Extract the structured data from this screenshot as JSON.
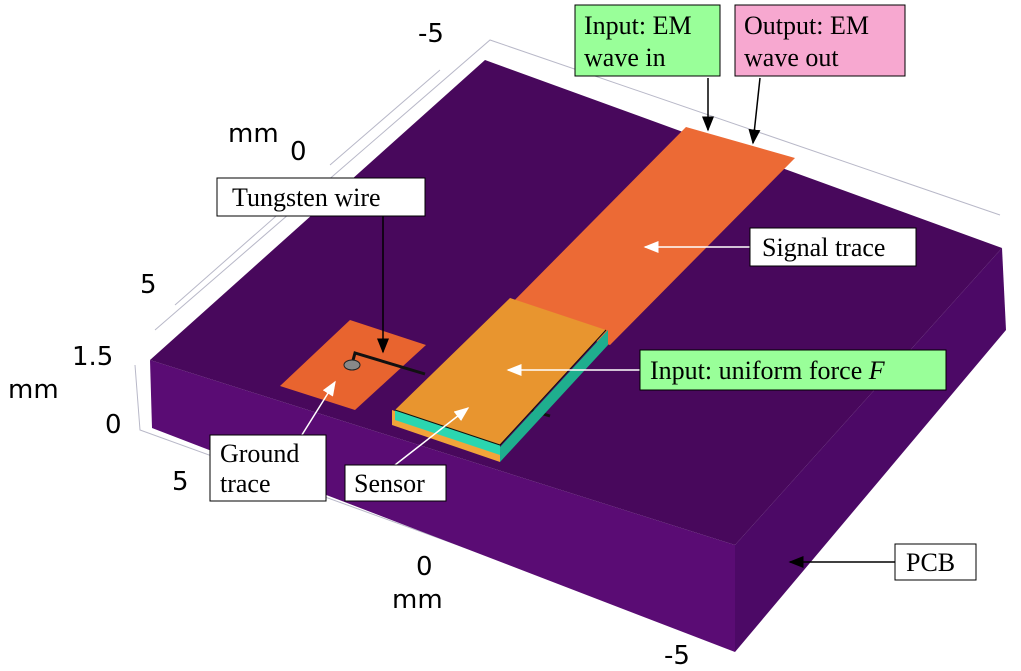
{
  "axes": {
    "depth": {
      "unit": "mm",
      "ticks": [
        "5",
        "0",
        "-5"
      ]
    },
    "height": {
      "unit": "mm",
      "ticks": [
        "1.5",
        "0"
      ]
    },
    "width": {
      "unit": "mm",
      "ticks": [
        "5",
        "0",
        "-5"
      ]
    }
  },
  "callouts": {
    "em_in": {
      "lines": [
        "Input: EM",
        "wave in"
      ]
    },
    "em_out": {
      "lines": [
        "Output: EM",
        "wave out"
      ]
    },
    "tungsten": {
      "lines": [
        "Tungsten wire"
      ]
    },
    "signal": {
      "lines": [
        "Signal trace"
      ]
    },
    "force": {
      "text": "Input: uniform force",
      "symbol": "F"
    },
    "ground": {
      "lines": [
        "Ground",
        "trace"
      ]
    },
    "sensor": {
      "lines": [
        "Sensor"
      ]
    },
    "pcb": {
      "lines": [
        "PCB"
      ]
    }
  }
}
